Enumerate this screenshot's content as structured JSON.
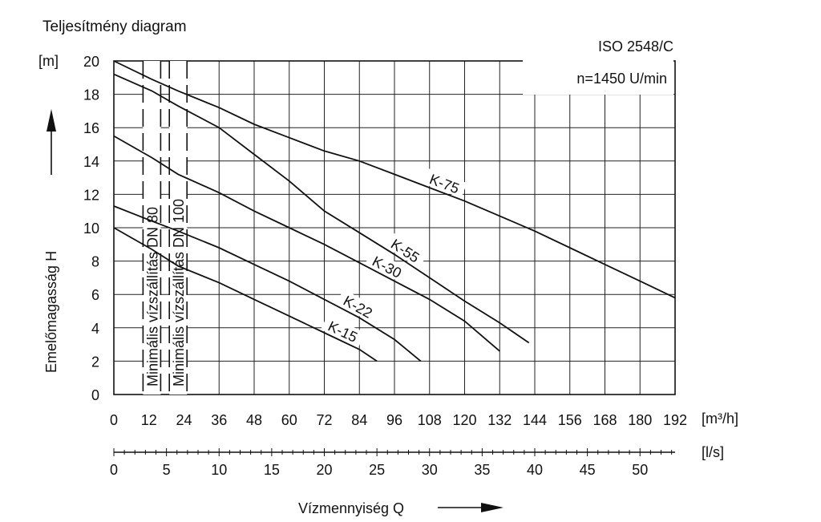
{
  "chart_data": {
    "type": "line",
    "title": "Teljesítmény diagram",
    "annotations": [
      "ISO 2548/C",
      "n=1450 U/min"
    ],
    "ylabel": "Emelőmagasság H",
    "yunit": "[m]",
    "xlabel": "Vízmennyiség Q",
    "xunit": "[m³/h]",
    "x2unit": "[l/s]",
    "xlim": [
      0,
      192
    ],
    "ylim": [
      0,
      20
    ],
    "xticks": [
      "0",
      "12",
      "24",
      "36",
      "48",
      "60",
      "72",
      "84",
      "96",
      "108",
      "120",
      "132",
      "144",
      "156",
      "168",
      "180",
      "192"
    ],
    "yticks": [
      "0",
      "2",
      "4",
      "6",
      "8",
      "10",
      "12",
      "14",
      "16",
      "18",
      "20"
    ],
    "x2ticks": [
      "0",
      "5",
      "10",
      "15",
      "20",
      "25",
      "30",
      "35",
      "40",
      "45",
      "50"
    ],
    "grid": true,
    "min_flow_markers": [
      {
        "label": "Minimális vízszállítás DN 80",
        "x": 13
      },
      {
        "label": "Minimális vízszállítás DN 100",
        "x": 22
      }
    ],
    "series": [
      {
        "name": "K-75",
        "x": [
          0,
          13,
          22,
          36,
          48,
          60,
          72,
          84,
          96,
          108,
          120,
          132,
          144,
          156,
          168,
          180,
          192
        ],
        "y": [
          20.0,
          18.9,
          18.2,
          17.2,
          16.2,
          15.4,
          14.6,
          14.0,
          13.2,
          12.4,
          11.6,
          10.7,
          9.8,
          8.8,
          7.8,
          6.8,
          5.8
        ]
      },
      {
        "name": "K-55",
        "x": [
          0,
          13,
          22,
          36,
          48,
          60,
          72,
          84,
          96,
          108,
          120,
          132,
          142
        ],
        "y": [
          19.2,
          18.2,
          17.3,
          16.0,
          14.4,
          12.8,
          11.0,
          9.7,
          8.4,
          7.0,
          5.6,
          4.3,
          3.1
        ]
      },
      {
        "name": "K-30",
        "x": [
          0,
          13,
          22,
          36,
          48,
          60,
          72,
          84,
          96,
          108,
          120,
          132
        ],
        "y": [
          15.5,
          14.2,
          13.2,
          12.1,
          11.0,
          10.0,
          9.0,
          7.9,
          6.8,
          5.7,
          4.4,
          2.6
        ]
      },
      {
        "name": "K-22",
        "x": [
          0,
          13,
          22,
          36,
          48,
          60,
          72,
          84,
          96,
          105
        ],
        "y": [
          11.3,
          10.4,
          9.8,
          8.8,
          7.8,
          6.8,
          5.7,
          4.6,
          3.3,
          2.0
        ]
      },
      {
        "name": "K-15",
        "x": [
          0,
          13,
          22,
          36,
          48,
          60,
          72,
          84,
          90
        ],
        "y": [
          10.0,
          8.7,
          7.7,
          6.7,
          5.7,
          4.7,
          3.7,
          2.7,
          2.0
        ]
      }
    ],
    "series_label_positions": {
      "K-75": 112,
      "K-55": 98,
      "K-30": 92,
      "K-22": 82,
      "K-15": 77
    }
  }
}
